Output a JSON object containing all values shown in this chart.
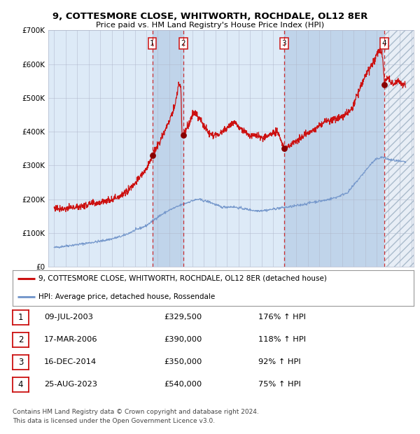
{
  "title": "9, COTTESMORE CLOSE, WHITWORTH, ROCHDALE, OL12 8ER",
  "subtitle": "Price paid vs. HM Land Registry's House Price Index (HPI)",
  "legend_line1": "9, COTTESMORE CLOSE, WHITWORTH, ROCHDALE, OL12 8ER (detached house)",
  "legend_line2": "HPI: Average price, detached house, Rossendale",
  "transactions": [
    {
      "num": 1,
      "date": "09-JUL-2003",
      "price": 329500,
      "pct": "176%",
      "dir": "↑"
    },
    {
      "num": 2,
      "date": "17-MAR-2006",
      "price": 390000,
      "pct": "118%",
      "dir": "↑"
    },
    {
      "num": 3,
      "date": "16-DEC-2014",
      "price": 350000,
      "pct": "92%",
      "dir": "↑"
    },
    {
      "num": 4,
      "date": "25-AUG-2023",
      "price": 540000,
      "pct": "75%",
      "dir": "↑"
    }
  ],
  "transaction_dates_decimal": [
    2003.52,
    2006.21,
    2014.96,
    2023.65
  ],
  "dot_values": [
    329500,
    390000,
    350000,
    540000
  ],
  "ylim": [
    0,
    700000
  ],
  "yticks": [
    0,
    100000,
    200000,
    300000,
    400000,
    500000,
    600000,
    700000
  ],
  "ytick_labels": [
    "£0",
    "£100K",
    "£200K",
    "£300K",
    "£400K",
    "£500K",
    "£600K",
    "£700K"
  ],
  "xlim_start": 1994.5,
  "xlim_end": 2026.2,
  "hatch_start": 2023.65,
  "background_color": "#ffffff",
  "plot_bg_color": "#ddeaf7",
  "grid_color": "#b0b8cc",
  "red_line_color": "#cc1111",
  "blue_line_color": "#7799cc",
  "dot_color": "#880000",
  "vline_color": "#cc1111",
  "shade_color": "#c0d4ea",
  "footer_text": "Contains HM Land Registry data © Crown copyright and database right 2024.\nThis data is licensed under the Open Government Licence v3.0.",
  "hpi_anchors": [
    [
      1995.0,
      57000
    ],
    [
      1996.0,
      62000
    ],
    [
      1997.0,
      66000
    ],
    [
      1998.0,
      71000
    ],
    [
      1999.0,
      76000
    ],
    [
      2000.0,
      83000
    ],
    [
      2001.0,
      92000
    ],
    [
      2002.0,
      108000
    ],
    [
      2003.0,
      122000
    ],
    [
      2004.0,
      148000
    ],
    [
      2005.0,
      168000
    ],
    [
      2006.0,
      183000
    ],
    [
      2007.0,
      196000
    ],
    [
      2007.5,
      200000
    ],
    [
      2008.5,
      192000
    ],
    [
      2009.5,
      177000
    ],
    [
      2010.5,
      178000
    ],
    [
      2011.5,
      172000
    ],
    [
      2012.5,
      166000
    ],
    [
      2013.5,
      168000
    ],
    [
      2014.5,
      174000
    ],
    [
      2015.5,
      178000
    ],
    [
      2016.5,
      184000
    ],
    [
      2017.5,
      192000
    ],
    [
      2018.5,
      197000
    ],
    [
      2019.5,
      206000
    ],
    [
      2020.5,
      221000
    ],
    [
      2021.5,
      263000
    ],
    [
      2022.5,
      305000
    ],
    [
      2023.0,
      320000
    ],
    [
      2023.5,
      325000
    ],
    [
      2024.0,
      318000
    ],
    [
      2025.0,
      312000
    ],
    [
      2025.5,
      310000
    ]
  ],
  "red_anchors": [
    [
      1995.0,
      175000
    ],
    [
      1996.0,
      172000
    ],
    [
      1997.0,
      177000
    ],
    [
      1998.0,
      184000
    ],
    [
      1999.0,
      192000
    ],
    [
      2000.0,
      201000
    ],
    [
      2001.0,
      213000
    ],
    [
      2002.0,
      248000
    ],
    [
      2003.0,
      288000
    ],
    [
      2003.52,
      329500
    ],
    [
      2004.0,
      360000
    ],
    [
      2004.5,
      395000
    ],
    [
      2005.0,
      430000
    ],
    [
      2005.5,
      480000
    ],
    [
      2005.8,
      540000
    ],
    [
      2006.0,
      535000
    ],
    [
      2006.1,
      390000
    ],
    [
      2006.21,
      390000
    ],
    [
      2006.4,
      405000
    ],
    [
      2006.7,
      420000
    ],
    [
      2007.0,
      450000
    ],
    [
      2007.3,
      455000
    ],
    [
      2007.6,
      440000
    ],
    [
      2008.0,
      418000
    ],
    [
      2008.5,
      395000
    ],
    [
      2009.0,
      388000
    ],
    [
      2009.5,
      398000
    ],
    [
      2010.0,
      410000
    ],
    [
      2010.4,
      428000
    ],
    [
      2010.8,
      420000
    ],
    [
      2011.2,
      408000
    ],
    [
      2011.6,
      398000
    ],
    [
      2012.0,
      388000
    ],
    [
      2012.4,
      392000
    ],
    [
      2012.8,
      388000
    ],
    [
      2013.2,
      382000
    ],
    [
      2013.6,
      388000
    ],
    [
      2014.0,
      395000
    ],
    [
      2014.4,
      400000
    ],
    [
      2014.96,
      350000
    ],
    [
      2015.2,
      355000
    ],
    [
      2015.6,
      362000
    ],
    [
      2016.0,
      372000
    ],
    [
      2016.4,
      382000
    ],
    [
      2016.8,
      390000
    ],
    [
      2017.2,
      398000
    ],
    [
      2017.6,
      405000
    ],
    [
      2018.0,
      418000
    ],
    [
      2018.4,
      428000
    ],
    [
      2018.8,
      432000
    ],
    [
      2019.2,
      436000
    ],
    [
      2019.6,
      440000
    ],
    [
      2020.0,
      445000
    ],
    [
      2020.4,
      455000
    ],
    [
      2020.8,
      468000
    ],
    [
      2021.0,
      482000
    ],
    [
      2021.3,
      510000
    ],
    [
      2021.6,
      535000
    ],
    [
      2022.0,
      565000
    ],
    [
      2022.3,
      582000
    ],
    [
      2022.6,
      598000
    ],
    [
      2022.9,
      620000
    ],
    [
      2023.1,
      635000
    ],
    [
      2023.3,
      642000
    ],
    [
      2023.5,
      625000
    ],
    [
      2023.65,
      540000
    ],
    [
      2023.8,
      555000
    ],
    [
      2024.0,
      562000
    ],
    [
      2024.2,
      548000
    ],
    [
      2024.4,
      542000
    ],
    [
      2024.6,
      548000
    ],
    [
      2024.8,
      550000
    ],
    [
      2025.0,
      545000
    ],
    [
      2025.5,
      538000
    ]
  ]
}
